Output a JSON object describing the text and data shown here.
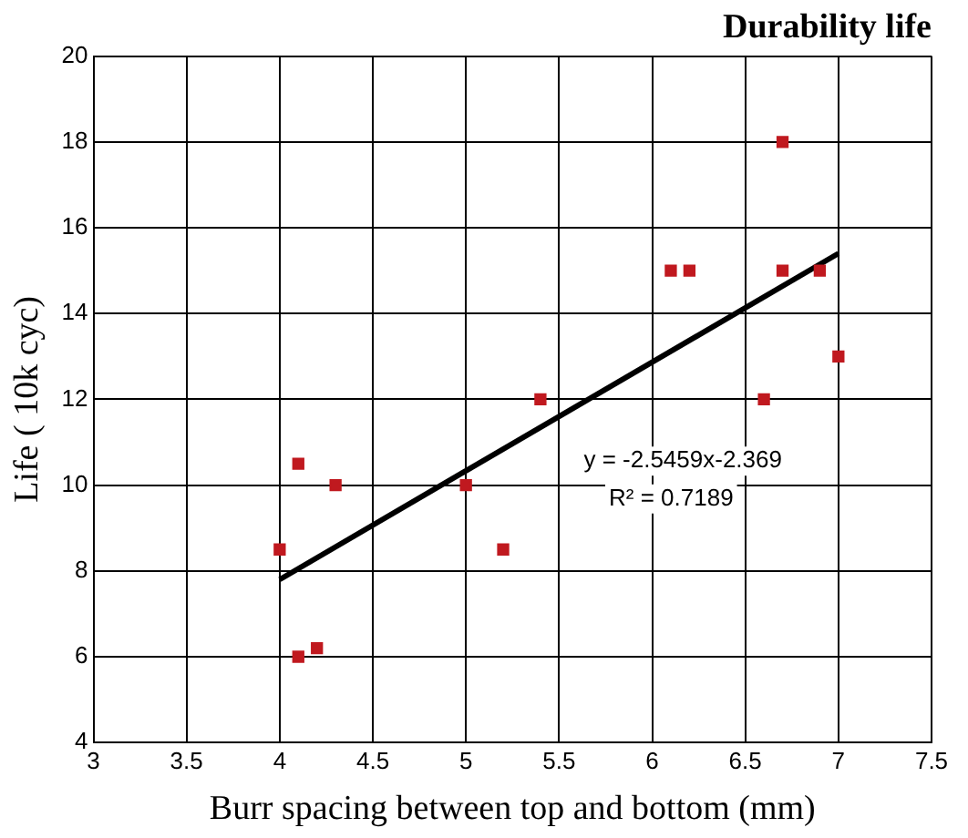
{
  "chart_data": {
    "type": "scatter",
    "title": "Durability life",
    "xlabel": "Burr spacing between top and bottom (mm)",
    "ylabel": "Life ( 10k cyc)",
    "xlim": [
      3,
      7.5
    ],
    "xticks": [
      3,
      3.5,
      4,
      4.5,
      5,
      5.5,
      6,
      6.5,
      7,
      7.5
    ],
    "ylim": [
      4,
      20
    ],
    "yticks": [
      4,
      6,
      8,
      10,
      12,
      14,
      16,
      18,
      20
    ],
    "grid": true,
    "legend": false,
    "marker": "square",
    "series": [
      {
        "color": "#c0191f",
        "x": [
          4.0,
          4.1,
          4.1,
          4.2,
          4.3,
          5.0,
          5.2,
          5.4,
          6.1,
          6.2,
          6.6,
          6.7,
          6.7,
          6.9,
          7.0
        ],
        "values": [
          8.5,
          10.5,
          6.0,
          6.2,
          10.0,
          10.0,
          8.5,
          12.0,
          15.0,
          15.0,
          12.0,
          18.0,
          15.0,
          15.0,
          13.0
        ]
      },
      {
        "type": "line",
        "color": "#000000",
        "marker": "none",
        "x": [
          4.0,
          7.0
        ],
        "values": [
          7.8,
          15.4
        ]
      }
    ],
    "annotations": [
      "y = -2.5459x-2.369",
      "R² = 0.7189"
    ]
  }
}
